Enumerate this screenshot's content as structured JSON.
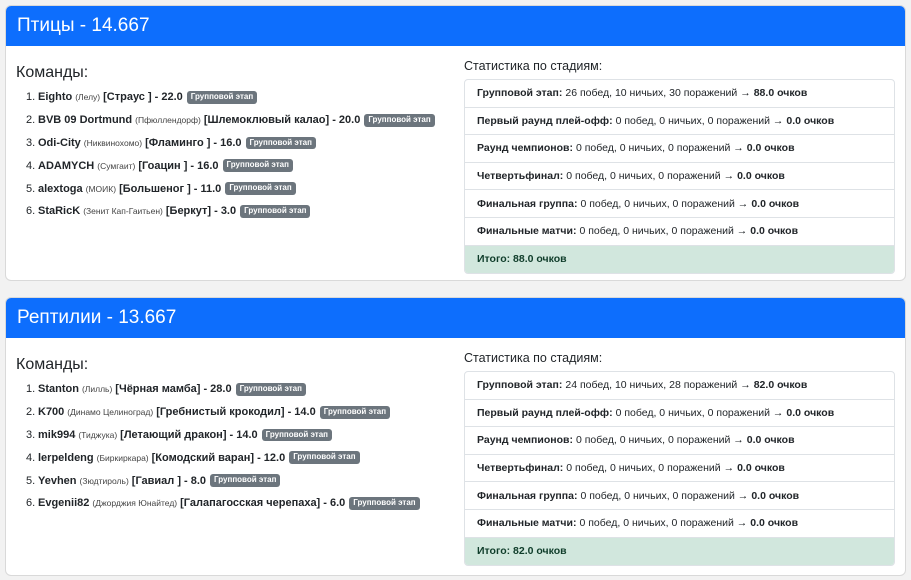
{
  "groups": [
    {
      "header": "Птицы - 14.667",
      "teams_title": "Команды:",
      "teams": [
        {
          "num": "1.",
          "name": "Eighto",
          "city": "(Лелу)",
          "animal": "[Страус ]",
          "score": "- 22.0",
          "badge": "Групповой этап"
        },
        {
          "num": "2.",
          "name": "BVB 09 Dortmund",
          "city": "(Пфюллендорф)",
          "animal": "[Шлемоклювый калао]",
          "score": "- 20.0",
          "badge": "Групповой этап"
        },
        {
          "num": "3.",
          "name": "Odi-City",
          "city": "(Никвинохомо)",
          "animal": "[Фламинго ]",
          "score": "- 16.0",
          "badge": "Групповой этап"
        },
        {
          "num": "4.",
          "name": "ADAMYCH",
          "city": "(Сумгаит)",
          "animal": "[Гоацин ]",
          "score": "- 16.0",
          "badge": "Групповой этап"
        },
        {
          "num": "5.",
          "name": "alextoga",
          "city": "(МОИК)",
          "animal": "[Большеног ]",
          "score": "- 11.0",
          "badge": "Групповой этап"
        },
        {
          "num": "6.",
          "name": "StaRicK",
          "city": "(Зенит Кап-Гаитьен)",
          "animal": "[Беркут]",
          "score": "- 3.0",
          "badge": "Групповой этап"
        }
      ],
      "stats_title": "Статистика по стадиям:",
      "stats": [
        {
          "label": "Групповой этап:",
          "detail": "26 побед, 10 ничьих, 30 поражений →",
          "points": "88.0 очков"
        },
        {
          "label": "Первый раунд плей-офф:",
          "detail": "0 побед, 0 ничьих, 0 поражений →",
          "points": "0.0 очков"
        },
        {
          "label": "Раунд чемпионов:",
          "detail": "0 побед, 0 ничьих, 0 поражений →",
          "points": "0.0 очков"
        },
        {
          "label": "Четвертьфинал:",
          "detail": "0 побед, 0 ничьих, 0 поражений →",
          "points": "0.0 очков"
        },
        {
          "label": "Финальная группа:",
          "detail": "0 побед, 0 ничьих, 0 поражений →",
          "points": "0.0 очков"
        },
        {
          "label": "Финальные матчи:",
          "detail": "0 побед, 0 ничьих, 0 поражений →",
          "points": "0.0 очков"
        }
      ],
      "total": "Итого: 88.0 очков"
    },
    {
      "header": "Рептилии - 13.667",
      "teams_title": "Команды:",
      "teams": [
        {
          "num": "1.",
          "name": "Stanton",
          "city": "(Лилль)",
          "animal": "[Чёрная мамба]",
          "score": "- 28.0",
          "badge": "Групповой этап"
        },
        {
          "num": "2.",
          "name": "K700",
          "city": "(Динамо Целиноград)",
          "animal": "[Гребнистый крокодил]",
          "score": "- 14.0",
          "badge": "Групповой этап"
        },
        {
          "num": "3.",
          "name": "mik994",
          "city": "(Тиджука)",
          "animal": "[Летающий дракон]",
          "score": "- 14.0",
          "badge": "Групповой этап"
        },
        {
          "num": "4.",
          "name": "lerpeldeng",
          "city": "(Биркиркара)",
          "animal": "[Комодский варан]",
          "score": "- 12.0",
          "badge": "Групповой этап"
        },
        {
          "num": "5.",
          "name": "Yevhen",
          "city": "(Зюдтироль)",
          "animal": "[Гавиал ]",
          "score": "- 8.0",
          "badge": "Групповой этап"
        },
        {
          "num": "6.",
          "name": "Evgenii82",
          "city": "(Джорджия Юнайтед)",
          "animal": "[Галапагосская черепаха]",
          "score": "- 6.0",
          "badge": "Групповой этап"
        }
      ],
      "stats_title": "Статистика по стадиям:",
      "stats": [
        {
          "label": "Групповой этап:",
          "detail": "24 побед, 10 ничьих, 28 поражений →",
          "points": "82.0 очков"
        },
        {
          "label": "Первый раунд плей-офф:",
          "detail": "0 побед, 0 ничьих, 0 поражений →",
          "points": "0.0 очков"
        },
        {
          "label": "Раунд чемпионов:",
          "detail": "0 побед, 0 ничьих, 0 поражений →",
          "points": "0.0 очков"
        },
        {
          "label": "Четвертьфинал:",
          "detail": "0 побед, 0 ничьих, 0 поражений →",
          "points": "0.0 очков"
        },
        {
          "label": "Финальная группа:",
          "detail": "0 побед, 0 ничьих, 0 поражений →",
          "points": "0.0 очков"
        },
        {
          "label": "Финальные матчи:",
          "detail": "0 побед, 0 ничьих, 0 поражений →",
          "points": "0.0 очков"
        }
      ],
      "total": "Итого: 82.0 очков"
    }
  ],
  "colors": {
    "header": "#0d6efd",
    "badge": "#6c757d",
    "total_bg": "#d1e7dd"
  }
}
